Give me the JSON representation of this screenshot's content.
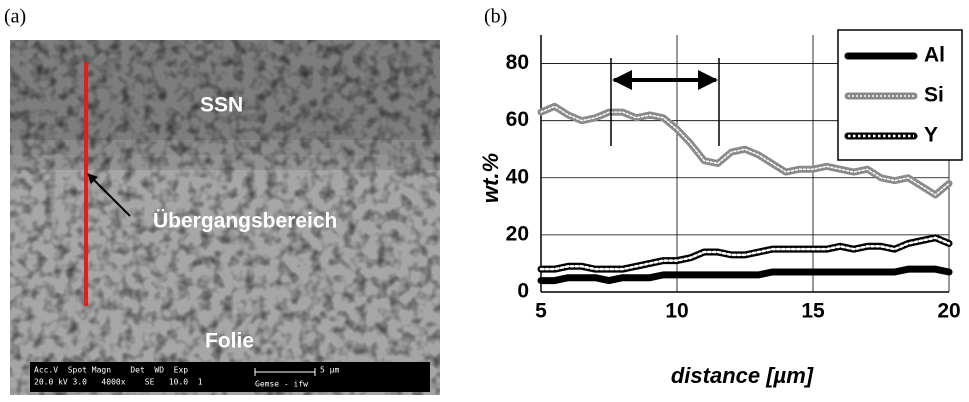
{
  "image_panel": {
    "panel_label": "(a)",
    "labels": [
      "SSN",
      "Übergangsbereich",
      "Folie"
    ],
    "info_bar": {
      "line1": "Acc.V  Spot Magn    Det  WD  Exp",
      "line2": "20.0 kV 3.0   4000x    SE   10.0  1",
      "scale": "5 µm",
      "source": "Gemse - ifw"
    }
  },
  "chart_data": {
    "type": "line",
    "panel_label": "(b)",
    "x_label": "distance [µm]",
    "y_label": "wt.%",
    "x": [
      5,
      5.5,
      6,
      6.5,
      7,
      7.5,
      8,
      8.5,
      9,
      9.5,
      10,
      10.5,
      11,
      11.5,
      12,
      12.5,
      13,
      13.5,
      14,
      14.5,
      15,
      15.5,
      16,
      16.5,
      17,
      17.5,
      18,
      18.5,
      19,
      19.5,
      20
    ],
    "series": [
      {
        "name": "Al",
        "color": "#000000",
        "values": [
          4,
          4,
          5,
          5,
          5,
          4,
          5,
          5,
          5,
          6,
          6,
          6,
          6,
          6,
          6,
          6,
          6,
          7,
          7,
          7,
          7,
          7,
          7,
          7,
          7,
          7,
          7,
          8,
          8,
          8,
          7
        ]
      },
      {
        "name": "Si",
        "color": "#8a8a8a",
        "values": [
          63,
          65,
          62,
          60,
          61,
          63,
          63,
          61,
          62,
          61,
          57,
          52,
          46,
          45,
          49,
          50,
          48,
          45,
          42,
          43,
          43,
          44,
          43,
          42,
          43,
          40,
          39,
          40,
          37,
          34,
          38
        ]
      },
      {
        "name": "Y",
        "color": "#000000",
        "values": [
          8,
          8,
          9,
          9,
          8,
          8,
          8,
          9,
          10,
          11,
          11,
          12,
          14,
          14,
          13,
          13,
          14,
          15,
          15,
          15,
          15,
          15,
          16,
          15,
          16,
          16,
          15,
          17,
          18,
          19,
          17
        ]
      }
    ],
    "xlim": [
      5,
      20
    ],
    "xticks": [
      5,
      10,
      15,
      20
    ],
    "ylim": [
      0,
      90
    ],
    "yticks": [
      0,
      20,
      40,
      60,
      80
    ],
    "grid": true,
    "legend": "upper right"
  }
}
